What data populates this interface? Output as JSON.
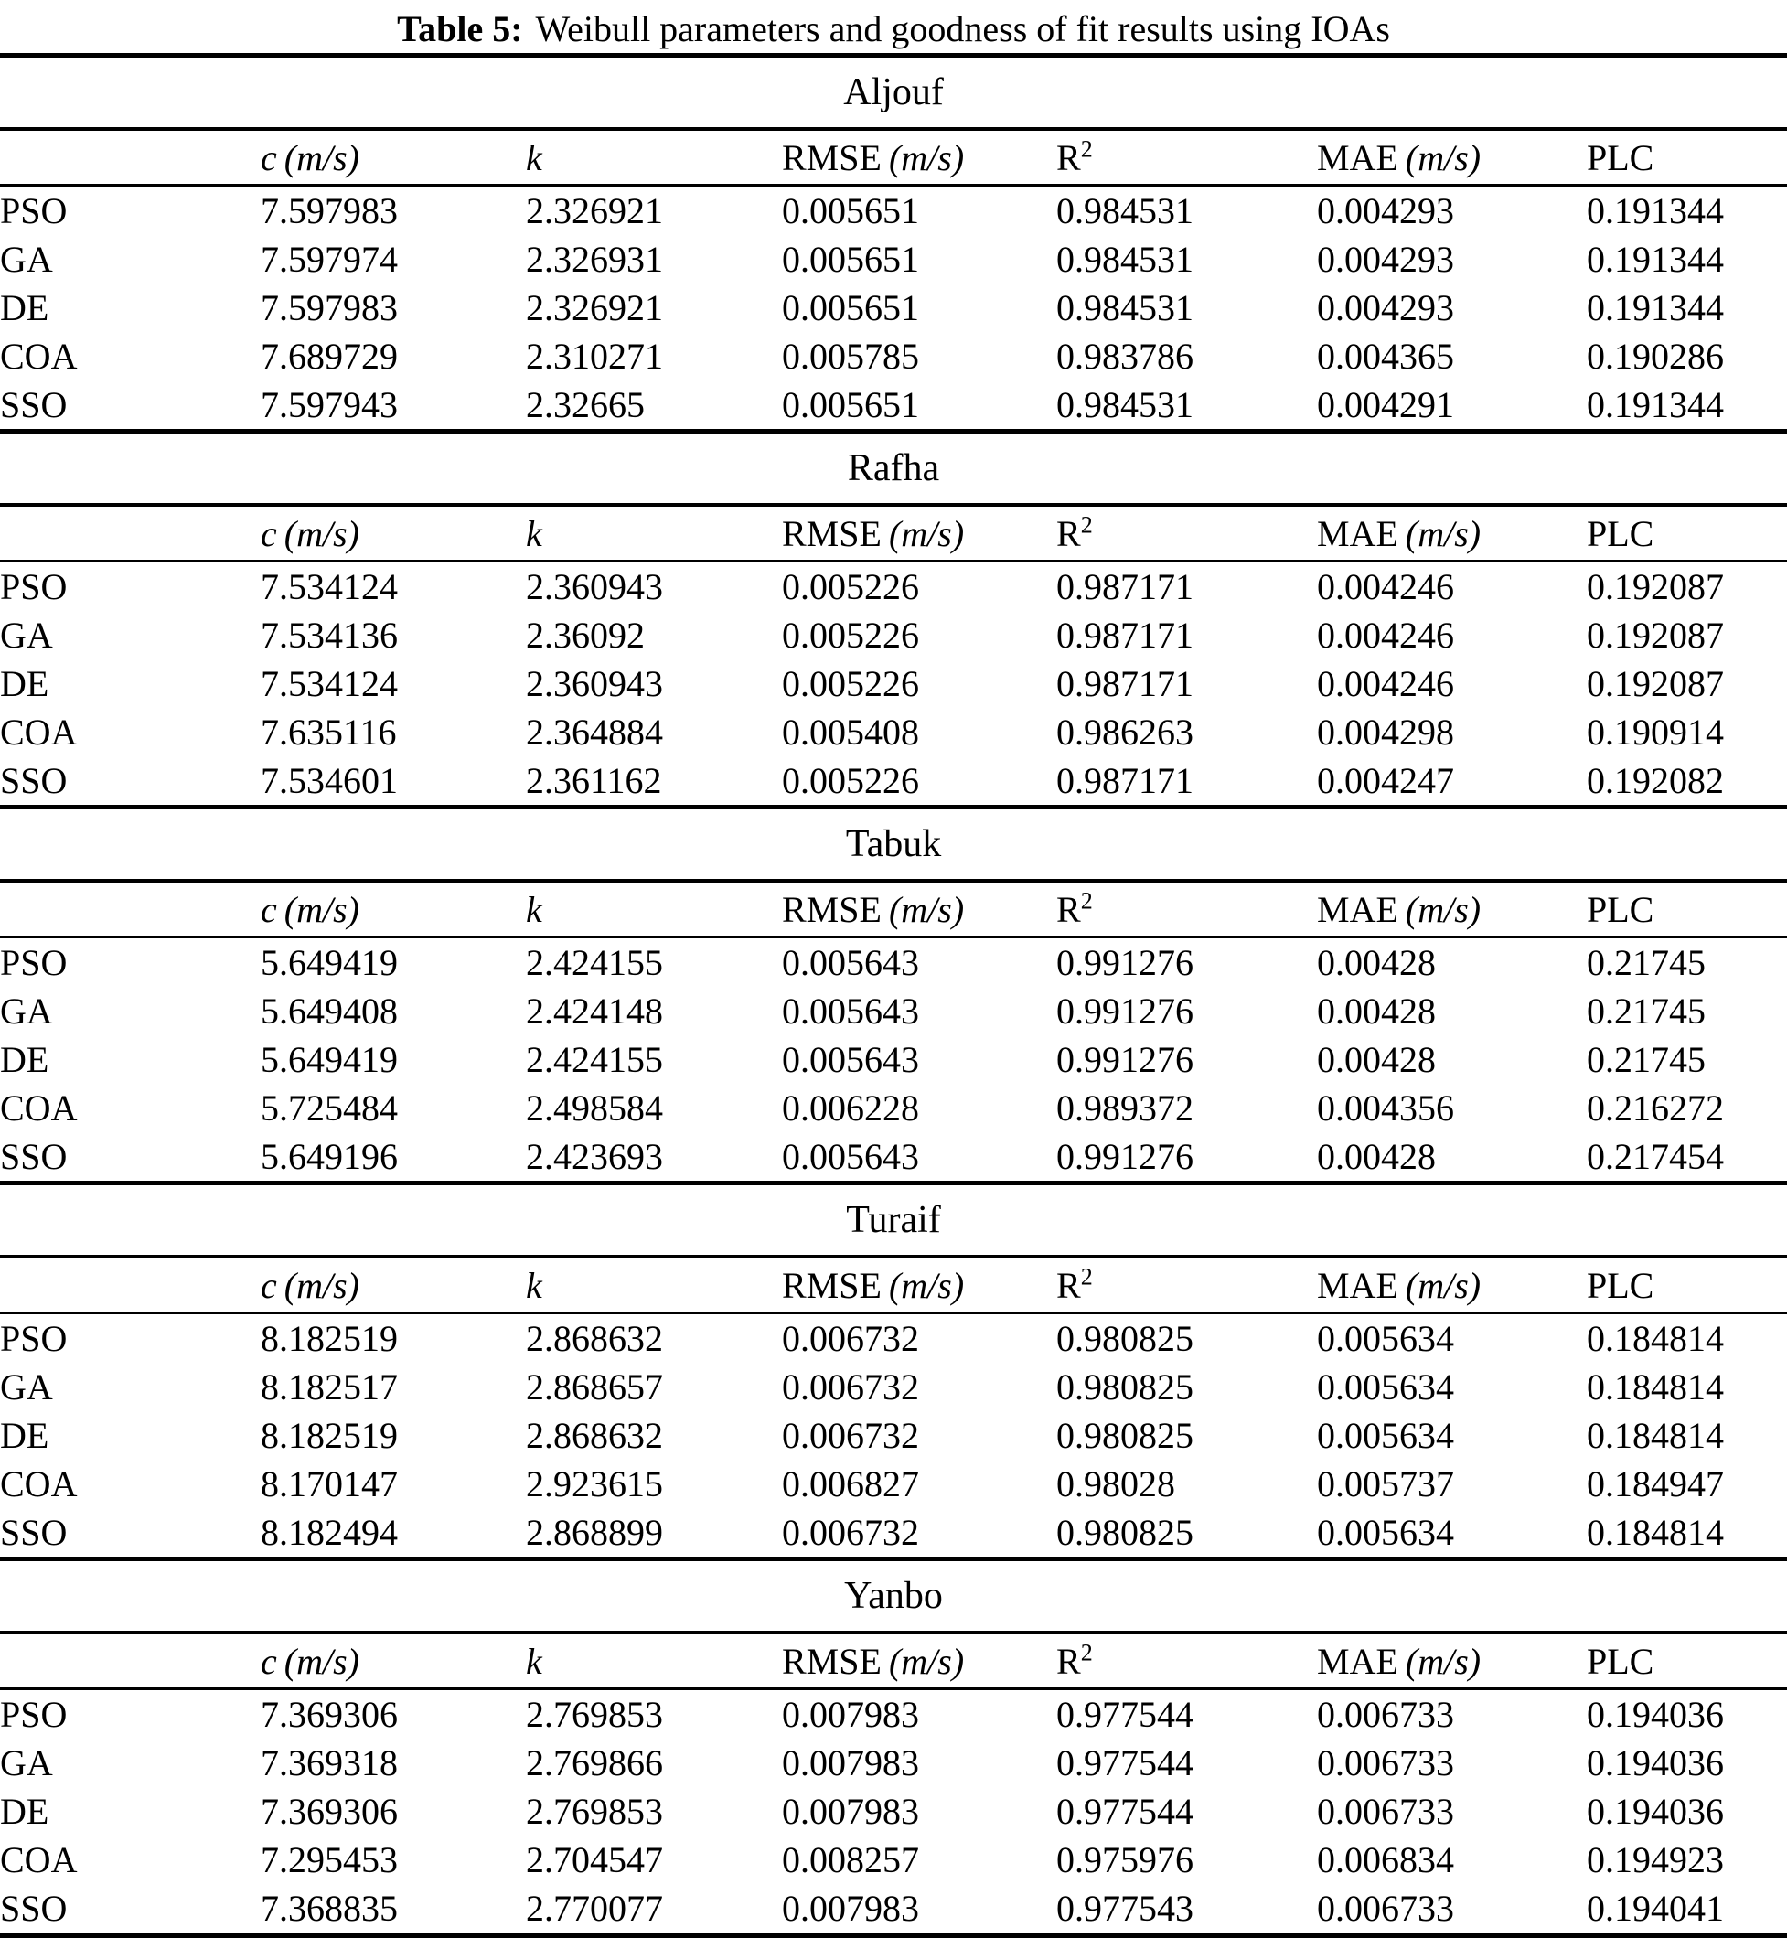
{
  "caption": {
    "label": "Table 5:",
    "text": "Weibull parameters and goodness of fit results using IOAs"
  },
  "columns": [
    {
      "key": "c",
      "symbol": "c",
      "unit": "(m/s)"
    },
    {
      "key": "k",
      "symbol": "k"
    },
    {
      "key": "rmse",
      "label": "RMSE",
      "unit": "(m/s)"
    },
    {
      "key": "r2",
      "label": "R",
      "sup": "2"
    },
    {
      "key": "mae",
      "label": "MAE",
      "unit": "(m/s)"
    },
    {
      "key": "plc",
      "label": "PLC"
    }
  ],
  "sections": [
    {
      "name": "Aljouf",
      "rows": [
        {
          "method": "PSO",
          "values": [
            "7.597983",
            "2.326921",
            "0.005651",
            "0.984531",
            "0.004293",
            "0.191344"
          ]
        },
        {
          "method": "GA",
          "values": [
            "7.597974",
            "2.326931",
            "0.005651",
            "0.984531",
            "0.004293",
            "0.191344"
          ]
        },
        {
          "method": "DE",
          "values": [
            "7.597983",
            "2.326921",
            "0.005651",
            "0.984531",
            "0.004293",
            "0.191344"
          ]
        },
        {
          "method": "COA",
          "values": [
            "7.689729",
            "2.310271",
            "0.005785",
            "0.983786",
            "0.004365",
            "0.190286"
          ]
        },
        {
          "method": "SSO",
          "values": [
            "7.597943",
            "2.32665",
            "0.005651",
            "0.984531",
            "0.004291",
            "0.191344"
          ]
        }
      ]
    },
    {
      "name": "Rafha",
      "rows": [
        {
          "method": "PSO",
          "values": [
            "7.534124",
            "2.360943",
            "0.005226",
            "0.987171",
            "0.004246",
            "0.192087"
          ]
        },
        {
          "method": "GA",
          "values": [
            "7.534136",
            "2.36092",
            "0.005226",
            "0.987171",
            "0.004246",
            "0.192087"
          ]
        },
        {
          "method": "DE",
          "values": [
            "7.534124",
            "2.360943",
            "0.005226",
            "0.987171",
            "0.004246",
            "0.192087"
          ]
        },
        {
          "method": "COA",
          "values": [
            "7.635116",
            "2.364884",
            "0.005408",
            "0.986263",
            "0.004298",
            "0.190914"
          ]
        },
        {
          "method": "SSO",
          "values": [
            "7.534601",
            "2.361162",
            "0.005226",
            "0.987171",
            "0.004247",
            "0.192082"
          ]
        }
      ]
    },
    {
      "name": "Tabuk",
      "rows": [
        {
          "method": "PSO",
          "values": [
            "5.649419",
            "2.424155",
            "0.005643",
            "0.991276",
            "0.00428",
            "0.21745"
          ]
        },
        {
          "method": "GA",
          "values": [
            "5.649408",
            "2.424148",
            "0.005643",
            "0.991276",
            "0.00428",
            "0.21745"
          ]
        },
        {
          "method": "DE",
          "values": [
            "5.649419",
            "2.424155",
            "0.005643",
            "0.991276",
            "0.00428",
            "0.21745"
          ]
        },
        {
          "method": "COA",
          "values": [
            "5.725484",
            "2.498584",
            "0.006228",
            "0.989372",
            "0.004356",
            "0.216272"
          ]
        },
        {
          "method": "SSO",
          "values": [
            "5.649196",
            "2.423693",
            "0.005643",
            "0.991276",
            "0.00428",
            "0.217454"
          ]
        }
      ]
    },
    {
      "name": "Turaif",
      "rows": [
        {
          "method": "PSO",
          "values": [
            "8.182519",
            "2.868632",
            "0.006732",
            "0.980825",
            "0.005634",
            "0.184814"
          ]
        },
        {
          "method": "GA",
          "values": [
            "8.182517",
            "2.868657",
            "0.006732",
            "0.980825",
            "0.005634",
            "0.184814"
          ]
        },
        {
          "method": "DE",
          "values": [
            "8.182519",
            "2.868632",
            "0.006732",
            "0.980825",
            "0.005634",
            "0.184814"
          ]
        },
        {
          "method": "COA",
          "values": [
            "8.170147",
            "2.923615",
            "0.006827",
            "0.98028",
            "0.005737",
            "0.184947"
          ]
        },
        {
          "method": "SSO",
          "values": [
            "8.182494",
            "2.868899",
            "0.006732",
            "0.980825",
            "0.005634",
            "0.184814"
          ]
        }
      ]
    },
    {
      "name": "Yanbo",
      "rows": [
        {
          "method": "PSO",
          "values": [
            "7.369306",
            "2.769853",
            "0.007983",
            "0.977544",
            "0.006733",
            "0.194036"
          ]
        },
        {
          "method": "GA",
          "values": [
            "7.369318",
            "2.769866",
            "0.007983",
            "0.977544",
            "0.006733",
            "0.194036"
          ]
        },
        {
          "method": "DE",
          "values": [
            "7.369306",
            "2.769853",
            "0.007983",
            "0.977544",
            "0.006733",
            "0.194036"
          ]
        },
        {
          "method": "COA",
          "values": [
            "7.295453",
            "2.704547",
            "0.008257",
            "0.975976",
            "0.006834",
            "0.194923"
          ]
        },
        {
          "method": "SSO",
          "values": [
            "7.368835",
            "2.770077",
            "0.007983",
            "0.977543",
            "0.006733",
            "0.194041"
          ]
        }
      ]
    }
  ]
}
